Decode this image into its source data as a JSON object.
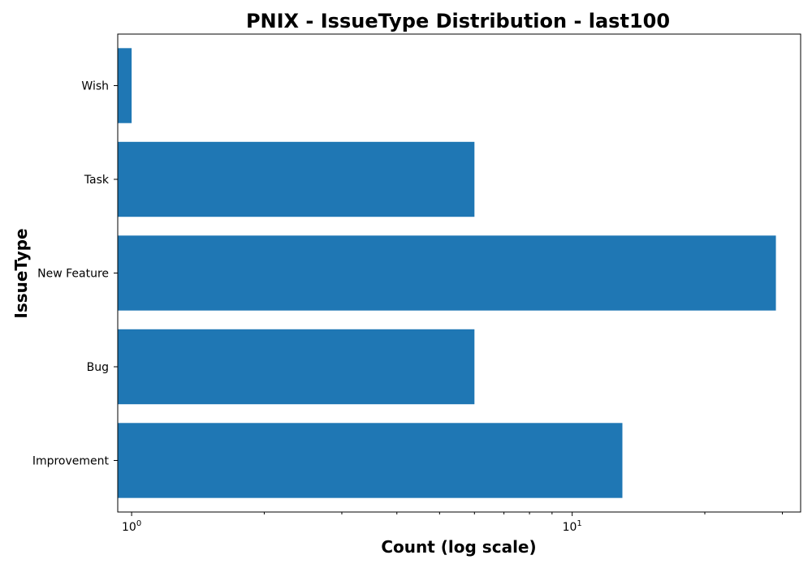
{
  "chart_data": {
    "type": "bar",
    "orientation": "horizontal",
    "title": "PNIX - IssueType Distribution - last100",
    "xlabel": "Count (log scale)",
    "ylabel": "IssueType",
    "x_scale": "log",
    "xlim": [
      0.93,
      33
    ],
    "x_major_ticks": [
      1,
      10
    ],
    "x_tick_labels": [
      {
        "base": "10",
        "exp": "0"
      },
      {
        "base": "10",
        "exp": "1"
      }
    ],
    "categories": [
      "Improvement",
      "Bug",
      "New Feature",
      "Task",
      "Wish"
    ],
    "values": [
      13,
      6,
      29,
      6,
      1
    ],
    "bar_color": "#1f77b4",
    "grid": false,
    "legend": false
  }
}
